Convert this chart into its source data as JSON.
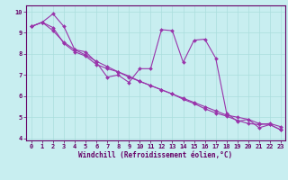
{
  "xlabel": "Windchill (Refroidissement éolien,°C)",
  "bg_color": "#c8eef0",
  "grid_color": "#aadddd",
  "line_color": "#9933aa",
  "xlim": [
    -0.5,
    23.4
  ],
  "ylim": [
    3.9,
    10.3
  ],
  "yticks": [
    4,
    5,
    6,
    7,
    8,
    9,
    10
  ],
  "xticks": [
    0,
    1,
    2,
    3,
    4,
    5,
    6,
    7,
    8,
    9,
    10,
    11,
    12,
    13,
    14,
    15,
    16,
    17,
    18,
    19,
    20,
    21,
    22,
    23
  ],
  "line1_x": [
    0,
    1,
    2,
    3,
    4,
    5,
    6,
    7,
    8,
    9,
    10,
    11,
    12,
    13,
    14,
    15,
    16,
    17,
    18,
    19,
    20,
    21,
    22,
    23
  ],
  "line1_y": [
    9.3,
    9.5,
    9.9,
    9.3,
    8.2,
    8.1,
    7.6,
    6.9,
    7.0,
    6.65,
    7.3,
    7.3,
    9.15,
    9.1,
    7.6,
    8.65,
    8.7,
    7.8,
    5.2,
    4.8,
    4.9,
    4.5,
    4.65,
    4.4
  ],
  "line2_x": [
    0,
    1,
    2,
    3,
    4,
    5,
    6,
    7,
    8,
    9,
    10,
    11,
    12,
    13,
    14,
    15,
    16,
    17,
    18,
    19,
    20,
    21,
    22,
    23
  ],
  "line2_y": [
    9.3,
    9.5,
    9.25,
    8.5,
    8.1,
    7.9,
    7.5,
    7.3,
    7.15,
    6.9,
    6.7,
    6.5,
    6.3,
    6.1,
    5.9,
    5.7,
    5.5,
    5.3,
    5.1,
    5.0,
    4.9,
    4.7,
    4.65,
    4.4
  ],
  "line3_x": [
    0,
    1,
    2,
    3,
    4,
    5,
    6,
    7,
    8,
    9,
    10,
    11,
    12,
    13,
    14,
    15,
    16,
    17,
    18,
    19,
    20,
    21,
    22,
    23
  ],
  "line3_y": [
    9.3,
    9.5,
    9.1,
    8.55,
    8.2,
    7.95,
    7.65,
    7.4,
    7.15,
    6.95,
    6.7,
    6.5,
    6.3,
    6.1,
    5.85,
    5.65,
    5.4,
    5.2,
    5.05,
    4.85,
    4.7,
    4.65,
    4.7,
    4.55
  ],
  "tick_fontsize": 5.0,
  "xlabel_fontsize": 5.5,
  "tick_color": "#660066",
  "spine_color": "#660066"
}
